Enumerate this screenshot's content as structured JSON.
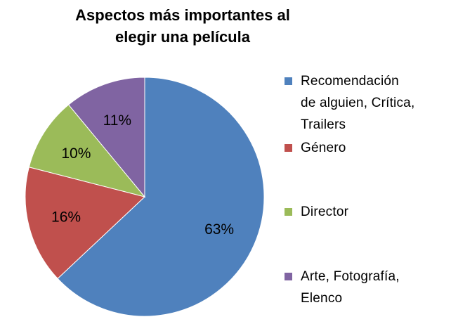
{
  "chart_data": {
    "type": "pie",
    "title_lines": [
      "Aspectos más importantes al",
      "elegir una película"
    ],
    "slices": [
      {
        "label": "Recomendación de alguien, Crítica, Trailers",
        "label_lines": [
          "Recomendación",
          "de alguien, Crítica,",
          "Trailers"
        ],
        "value": 63,
        "display": "63%",
        "color": "#4F81BD"
      },
      {
        "label": "Género",
        "label_lines": [
          "Género"
        ],
        "value": 16,
        "display": "16%",
        "color": "#C0504D"
      },
      {
        "label": "Director",
        "label_lines": [
          "Director"
        ],
        "value": 10,
        "display": "10%",
        "color": "#9BBB59"
      },
      {
        "label": "Arte, Fotografía, Elenco",
        "label_lines": [
          "Arte, Fotografía,",
          "Elenco"
        ],
        "value": 11,
        "display": "11%",
        "color": "#8064A2"
      }
    ],
    "legend_position": "right"
  }
}
